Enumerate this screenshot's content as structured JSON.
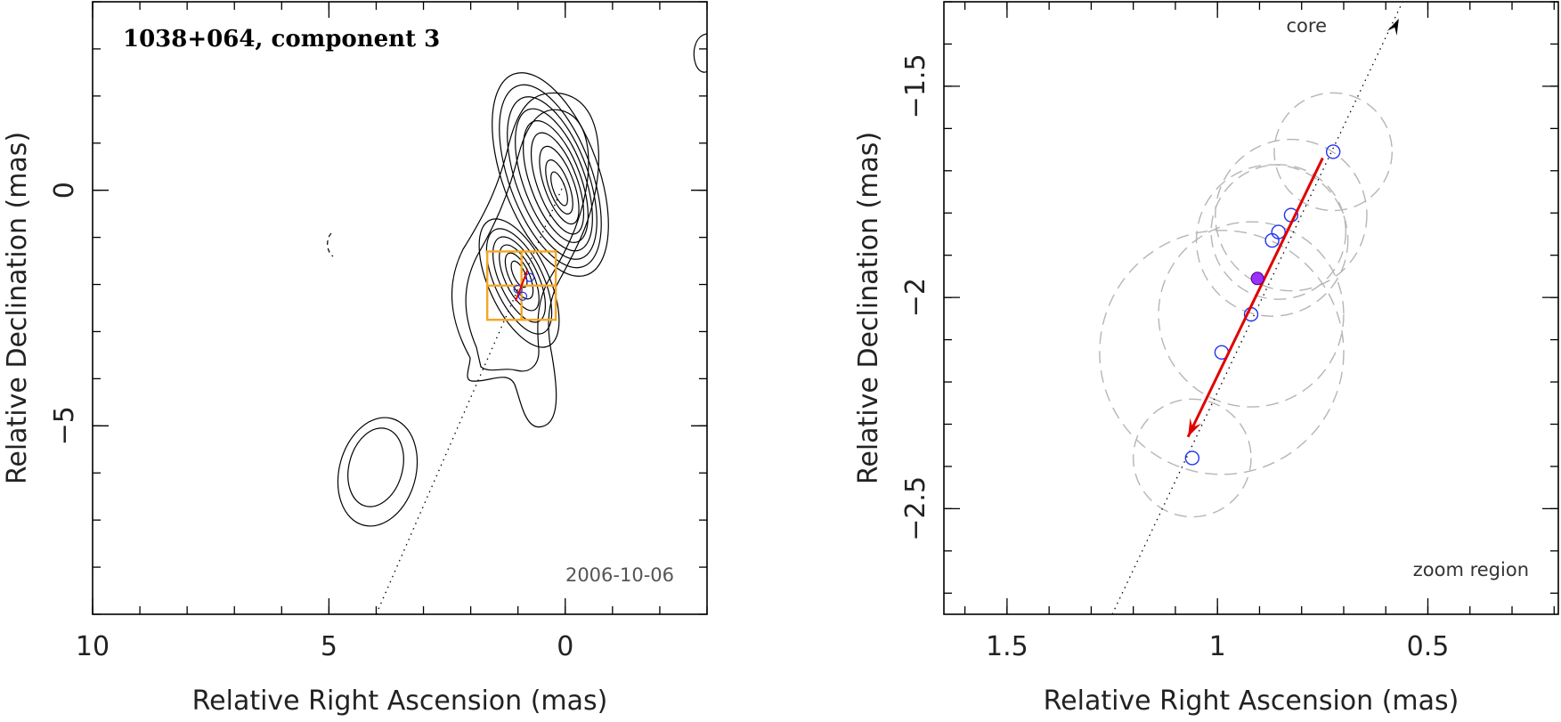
{
  "chart_data": [
    {
      "type": "contour",
      "panel": "left",
      "title": "1038+064, component 3",
      "date_label": "2006-10-06",
      "xlabel": "Relative Right Ascension (mas)",
      "ylabel": "Relative Declination (mas)",
      "xlim": [
        10,
        -3
      ],
      "ylim": [
        -9,
        4
      ],
      "xticks": [
        10,
        5,
        0
      ],
      "xtick_labels": [
        "10",
        "5",
        "0"
      ],
      "yticks": [
        0,
        -5
      ],
      "ytick_labels": [
        "0",
        "−5"
      ],
      "jet_axis": {
        "from": [
          4.0,
          -9.0
        ],
        "to": [
          0.0,
          0.2
        ]
      },
      "components": [
        {
          "x": 1.0,
          "y": -2.1
        },
        {
          "x": 0.9,
          "y": -2.25
        },
        {
          "x": 0.75,
          "y": -1.85
        }
      ],
      "velocity_arrow": {
        "from": [
          0.8,
          -1.7
        ],
        "to": [
          1.05,
          -2.35
        ]
      },
      "zoom_box": {
        "x": [
          0.2,
          1.65
        ],
        "y": [
          -2.75,
          -1.3
        ]
      }
    },
    {
      "type": "scatter",
      "panel": "right",
      "label": "zoom region",
      "core_label": "core",
      "xlabel": "Relative Right Ascension (mas)",
      "ylabel": "Relative Declination (mas)",
      "xlim": [
        1.65,
        0.19
      ],
      "ylim": [
        -2.75,
        -1.3
      ],
      "xticks": [
        1.5,
        1.0,
        0.5
      ],
      "xtick_labels": [
        "1.5",
        "1",
        "0.5"
      ],
      "yticks": [
        -1.5,
        -2.0,
        -2.5
      ],
      "ytick_labels": [
        "−1.5",
        "−2",
        "−2.5"
      ],
      "points": [
        {
          "x": 0.725,
          "y": -1.655,
          "size": 0.14
        },
        {
          "x": 0.825,
          "y": -1.805,
          "size": 0.18
        },
        {
          "x": 0.855,
          "y": -1.845,
          "size": 0.16
        },
        {
          "x": 0.87,
          "y": -1.865,
          "size": 0.18
        },
        {
          "x": 0.92,
          "y": -2.04,
          "size": 0.22
        },
        {
          "x": 0.99,
          "y": -2.13,
          "size": 0.29
        },
        {
          "x": 1.06,
          "y": -2.38,
          "size": 0.14
        }
      ],
      "mean_position": {
        "x": 0.905,
        "y": -1.955
      },
      "jet_axis": {
        "from": [
          1.25,
          -2.75
        ],
        "to": [
          0.56,
          -1.3
        ]
      },
      "velocity_arrow": {
        "from": [
          0.75,
          -1.67
        ],
        "to": [
          1.07,
          -2.33
        ]
      }
    }
  ]
}
